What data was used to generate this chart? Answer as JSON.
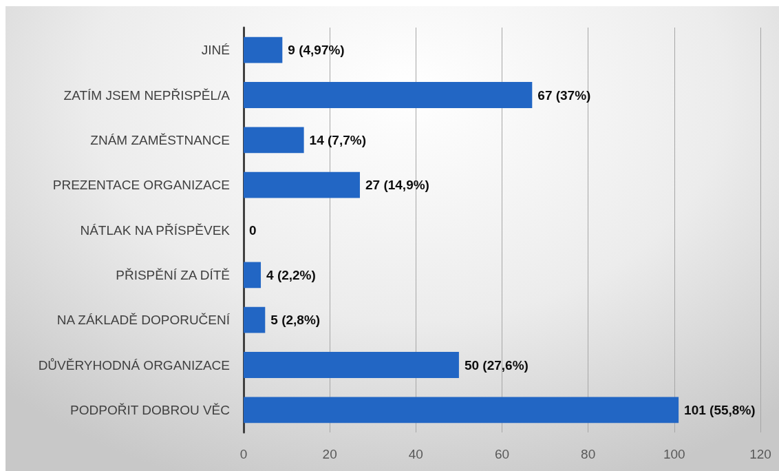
{
  "chart_data": {
    "type": "bar",
    "orientation": "horizontal",
    "categories": [
      "JINÉ",
      "ZATÍM JSEM NEPŘISPĚL/A",
      "ZNÁM ZAMĚSTNANCE",
      "PREZENTACE ORGANIZACE",
      "NÁTLAK NA PŘÍSPĚVEK",
      "PŘISPĚNÍ ZA DÍTĚ",
      "NA ZÁKLADĚ DOPORUČENÍ",
      "DŮVĚRYHODNÁ ORGANIZACE",
      "PODPOŘIT DOBROU VĚC"
    ],
    "values": [
      9,
      67,
      14,
      27,
      0,
      4,
      5,
      50,
      101
    ],
    "value_labels": [
      "9 (4,97%)",
      "67 (37%)",
      "14 (7,7%)",
      "27 (14,9%)",
      "0",
      "4 (2,2%)",
      "5 (2,8%)",
      "50 (27,6%)",
      "101 (55,8%)"
    ],
    "color": "#2266c4",
    "xlim": [
      0,
      120
    ],
    "xticks": [
      0,
      20,
      40,
      60,
      80,
      100,
      120
    ],
    "grid": "x"
  }
}
